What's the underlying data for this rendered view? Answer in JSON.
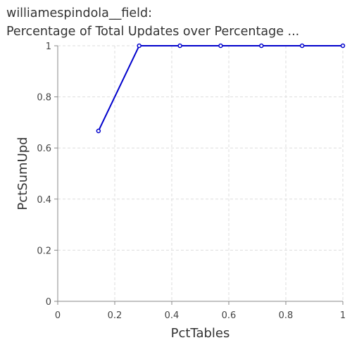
{
  "chart_data": {
    "type": "line",
    "title_lines": [
      "williamespindola__field:",
      "Percentage of Total Updates over Percentage ..."
    ],
    "xlabel": "PctTables",
    "ylabel": "PctSumUpd",
    "xlim": [
      0,
      1
    ],
    "ylim": [
      0,
      1
    ],
    "x_ticks": [
      "0",
      "0.2",
      "0.4",
      "0.6",
      "0.8",
      "1"
    ],
    "y_ticks": [
      "0",
      "0.2",
      "0.4",
      "0.6",
      "0.8",
      "1"
    ],
    "grid": true,
    "series": [
      {
        "color": "#0000cc",
        "points": [
          {
            "x": 0.1429,
            "y": 0.6667
          },
          {
            "x": 0.2857,
            "y": 1.0
          },
          {
            "x": 0.4286,
            "y": 1.0
          },
          {
            "x": 0.5714,
            "y": 1.0
          },
          {
            "x": 0.7143,
            "y": 1.0
          },
          {
            "x": 0.8571,
            "y": 1.0
          },
          {
            "x": 1.0,
            "y": 1.0
          }
        ]
      }
    ]
  }
}
